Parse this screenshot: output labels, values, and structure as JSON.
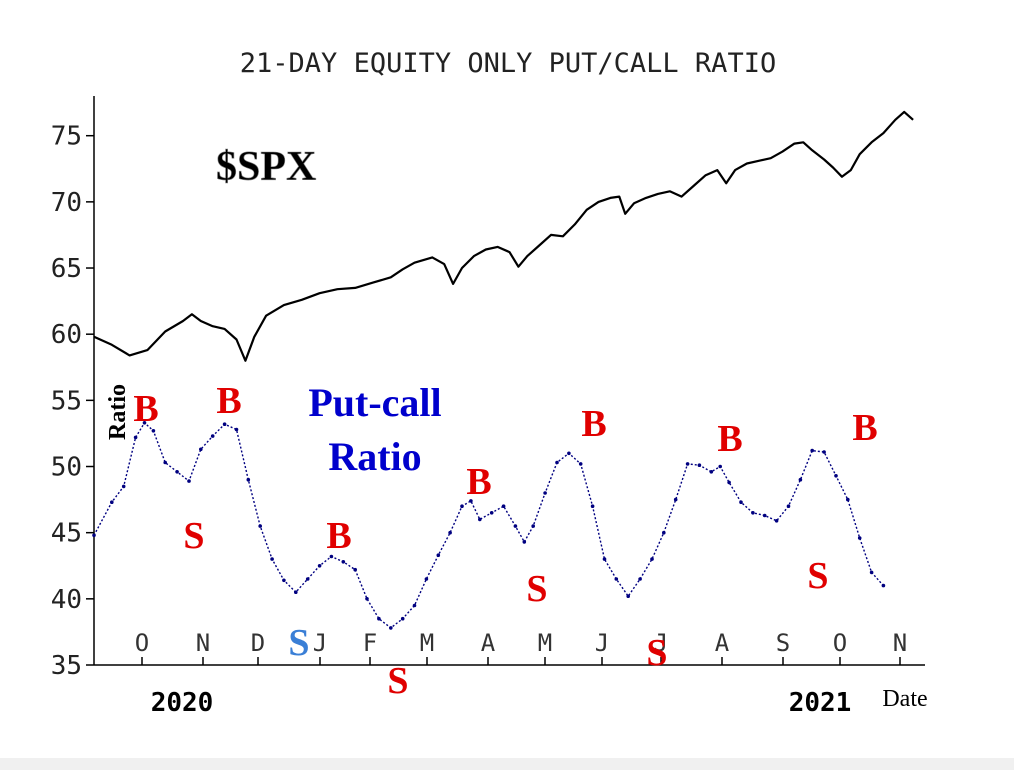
{
  "chart_data": {
    "type": "line",
    "title": "21-DAY EQUITY ONLY PUT/CALL RATIO",
    "ylabel": "Ratio",
    "xlabel": "Date",
    "ylim": [
      35,
      78
    ],
    "y_ticks": [
      35,
      40,
      45,
      50,
      55,
      60,
      65,
      70,
      75
    ],
    "x_month_labels": [
      "O",
      "N",
      "D",
      "J",
      "F",
      "M",
      "A",
      "M",
      "J",
      "J",
      "A",
      "S",
      "O",
      "N"
    ],
    "year_labels": [
      "2020",
      "2021"
    ],
    "grid": false,
    "series": [
      {
        "name": "$SPX",
        "color": "#000000",
        "points": [
          [
            0,
            59.8
          ],
          [
            3,
            59.2
          ],
          [
            6,
            58.4
          ],
          [
            9,
            58.8
          ],
          [
            12,
            60.2
          ],
          [
            15,
            61.0
          ],
          [
            16.5,
            61.5
          ],
          [
            18,
            61.0
          ],
          [
            20,
            60.6
          ],
          [
            22,
            60.4
          ],
          [
            24,
            59.6
          ],
          [
            25.5,
            58.0
          ],
          [
            27,
            59.8
          ],
          [
            29,
            61.4
          ],
          [
            32,
            62.2
          ],
          [
            35,
            62.6
          ],
          [
            38,
            63.1
          ],
          [
            41,
            63.4
          ],
          [
            44,
            63.5
          ],
          [
            47,
            63.9
          ],
          [
            50,
            64.3
          ],
          [
            52,
            64.9
          ],
          [
            54,
            65.4
          ],
          [
            57,
            65.8
          ],
          [
            59,
            65.3
          ],
          [
            60.5,
            63.8
          ],
          [
            62,
            65.0
          ],
          [
            64,
            65.9
          ],
          [
            66,
            66.4
          ],
          [
            68,
            66.6
          ],
          [
            70,
            66.2
          ],
          [
            71.5,
            65.1
          ],
          [
            73,
            65.9
          ],
          [
            75,
            66.7
          ],
          [
            77,
            67.5
          ],
          [
            79,
            67.4
          ],
          [
            81,
            68.3
          ],
          [
            83,
            69.4
          ],
          [
            85,
            70.0
          ],
          [
            87,
            70.3
          ],
          [
            88.5,
            70.4
          ],
          [
            89.5,
            69.1
          ],
          [
            91,
            69.9
          ],
          [
            93,
            70.3
          ],
          [
            95,
            70.6
          ],
          [
            97,
            70.8
          ],
          [
            99,
            70.4
          ],
          [
            101,
            71.2
          ],
          [
            103,
            72.0
          ],
          [
            105,
            72.4
          ],
          [
            106.5,
            71.4
          ],
          [
            108,
            72.4
          ],
          [
            110,
            72.9
          ],
          [
            112,
            73.1
          ],
          [
            114,
            73.3
          ],
          [
            116,
            73.8
          ],
          [
            118,
            74.4
          ],
          [
            119.5,
            74.5
          ],
          [
            121,
            73.9
          ],
          [
            123,
            73.2
          ],
          [
            124.5,
            72.6
          ],
          [
            126,
            71.9
          ],
          [
            127.5,
            72.4
          ],
          [
            129,
            73.6
          ],
          [
            131,
            74.5
          ],
          [
            133,
            75.2
          ],
          [
            135,
            76.2
          ],
          [
            136.5,
            76.8
          ],
          [
            138,
            76.2
          ]
        ]
      },
      {
        "name": "Put-call Ratio",
        "color": "#000080",
        "points": [
          [
            0,
            44.8
          ],
          [
            3,
            47.3
          ],
          [
            5,
            48.5
          ],
          [
            7,
            52.2
          ],
          [
            8.5,
            53.3
          ],
          [
            10,
            52.7
          ],
          [
            12,
            50.3
          ],
          [
            14,
            49.6
          ],
          [
            16,
            48.9
          ],
          [
            18,
            51.3
          ],
          [
            20,
            52.3
          ],
          [
            22,
            53.2
          ],
          [
            24,
            52.8
          ],
          [
            26,
            49.0
          ],
          [
            28,
            45.5
          ],
          [
            30,
            43.0
          ],
          [
            32,
            41.4
          ],
          [
            34,
            40.5
          ],
          [
            36,
            41.5
          ],
          [
            38,
            42.5
          ],
          [
            40,
            43.2
          ],
          [
            42,
            42.8
          ],
          [
            44,
            42.2
          ],
          [
            46,
            40.0
          ],
          [
            48,
            38.5
          ],
          [
            50,
            37.8
          ],
          [
            52,
            38.5
          ],
          [
            54,
            39.5
          ],
          [
            56,
            41.5
          ],
          [
            58,
            43.3
          ],
          [
            60,
            45.0
          ],
          [
            62,
            47.0
          ],
          [
            63.5,
            47.4
          ],
          [
            65,
            46.0
          ],
          [
            67,
            46.5
          ],
          [
            69,
            47.0
          ],
          [
            71,
            45.5
          ],
          [
            72.5,
            44.3
          ],
          [
            74,
            45.5
          ],
          [
            76,
            48.0
          ],
          [
            78,
            50.3
          ],
          [
            80,
            51.0
          ],
          [
            82,
            50.2
          ],
          [
            84,
            47.0
          ],
          [
            86,
            43.0
          ],
          [
            88,
            41.5
          ],
          [
            90,
            40.2
          ],
          [
            92,
            41.5
          ],
          [
            94,
            43.0
          ],
          [
            96,
            45.0
          ],
          [
            98,
            47.5
          ],
          [
            100,
            50.2
          ],
          [
            102,
            50.1
          ],
          [
            104,
            49.6
          ],
          [
            105.5,
            50.0
          ],
          [
            107,
            48.8
          ],
          [
            109,
            47.3
          ],
          [
            111,
            46.5
          ],
          [
            113,
            46.3
          ],
          [
            115,
            45.9
          ],
          [
            117,
            47.0
          ],
          [
            119,
            49.0
          ],
          [
            121,
            51.2
          ],
          [
            123,
            51.1
          ],
          [
            125,
            49.3
          ],
          [
            127,
            47.5
          ],
          [
            129,
            44.6
          ],
          [
            131,
            42.0
          ],
          [
            133,
            41.0
          ]
        ]
      }
    ],
    "annotations": [
      {
        "text": "$SPX",
        "color": "#000000"
      },
      {
        "text": "Put-call",
        "color": "#0000cc"
      },
      {
        "text": "Ratio",
        "color": "#0000cc"
      },
      {
        "text": "B",
        "color": "#e00000"
      },
      {
        "text": "B",
        "color": "#e00000"
      },
      {
        "text": "S",
        "color": "#e00000"
      },
      {
        "text": "B",
        "color": "#e00000"
      },
      {
        "text": "S",
        "color": "#3a7fd6"
      },
      {
        "text": "S",
        "color": "#e00000"
      },
      {
        "text": "B",
        "color": "#e00000"
      },
      {
        "text": "S",
        "color": "#e00000"
      },
      {
        "text": "B",
        "color": "#e00000"
      },
      {
        "text": "S",
        "color": "#e00000"
      },
      {
        "text": "B",
        "color": "#e00000"
      },
      {
        "text": "S",
        "color": "#e00000"
      },
      {
        "text": "B",
        "color": "#e00000"
      }
    ]
  }
}
